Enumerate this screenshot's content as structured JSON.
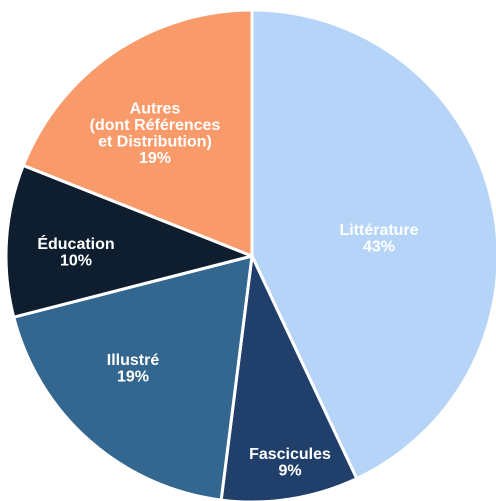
{
  "chart_data": {
    "type": "pie",
    "title": "",
    "start_angle_deg": 0,
    "direction": "clockwise",
    "slices": [
      {
        "name": "Littérature",
        "label_lines": [
          "Littérature",
          "43%"
        ],
        "value": 43,
        "color": "#b5d4f8",
        "text_color": "#ffffff"
      },
      {
        "name": "Fascicules",
        "label_lines": [
          "Fascicules",
          "9%"
        ],
        "value": 9,
        "color": "#203f6b",
        "text_color": "#ffffff"
      },
      {
        "name": "Illustré",
        "label_lines": [
          "Illustré",
          "19%"
        ],
        "value": 19,
        "color": "#336790",
        "text_color": "#ffffff"
      },
      {
        "name": "Éducation",
        "label_lines": [
          "Éducation",
          "10%"
        ],
        "value": 10,
        "color": "#0f1e2f",
        "text_color": "#ffffff"
      },
      {
        "name": "Autres (dont Références et Distribution)",
        "label_lines": [
          "Autres",
          "(dont Références",
          "et Distribution)",
          "19%"
        ],
        "value": 19,
        "color": "#f99a6b",
        "text_color": "#ffffff"
      }
    ]
  }
}
